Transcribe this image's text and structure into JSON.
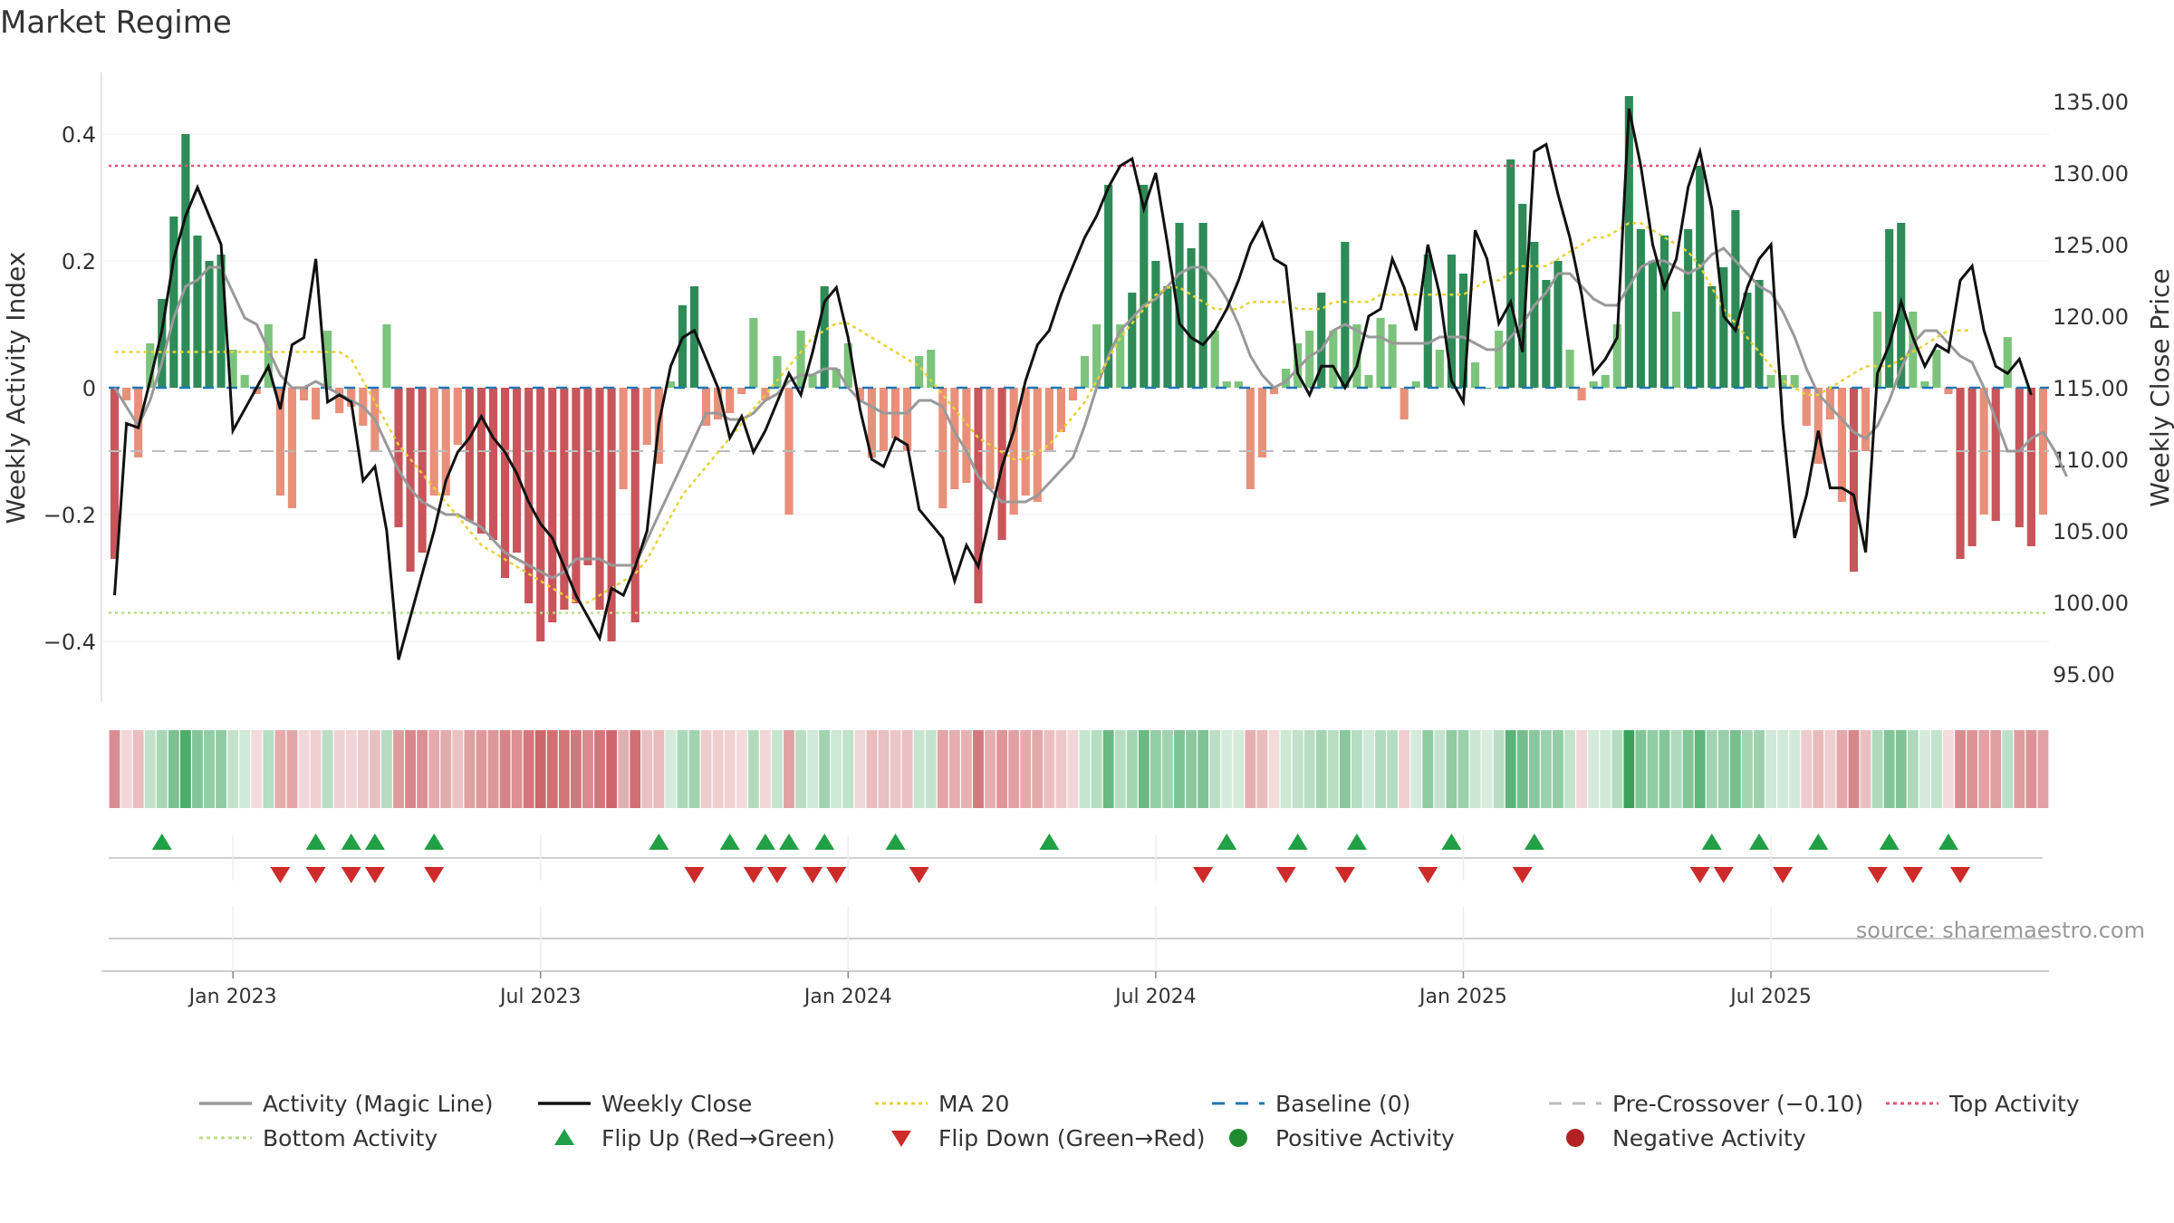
{
  "title": "Market Regime",
  "source": "source: sharemaestro.com",
  "colors": {
    "green_strong": "#2e8b57",
    "green_light": "#7cc47c",
    "red_strong": "#c8555a",
    "red_light": "#e9907a",
    "close": "#111111",
    "magic": "#999999",
    "ma20": "#e6d23a",
    "baseline": "#1f77b4",
    "pre": "#bbbbbb",
    "top": "#e0557a",
    "bottom": "#b9dd8a",
    "flip_up": "#22a046",
    "flip_down": "#cf2a2a",
    "pos_dot": "#1e8c2e",
    "neg_dot": "#b22222"
  },
  "chart_data": {
    "type": "bar",
    "x_ticks": [
      "Jan 2023",
      "Jul 2023",
      "Jan 2024",
      "Jul 2024",
      "Jan 2025",
      "Jul 2025"
    ],
    "y_left": {
      "label": "Weekly Activity Index",
      "ticks": [
        "−0.4",
        "−0.2",
        "0",
        "0.2",
        "0.4"
      ],
      "tick_values": [
        -0.4,
        -0.2,
        0,
        0.2,
        0.4
      ],
      "range": [
        -0.5,
        0.5
      ]
    },
    "y_right": {
      "label": "Weekly Close Price",
      "ticks": [
        "95.00",
        "100.00",
        "105.00",
        "110.00",
        "115.00",
        "120.00",
        "125.00",
        "130.00",
        "135.00"
      ],
      "tick_values": [
        95,
        100,
        105,
        110,
        115,
        120,
        125,
        130,
        135
      ],
      "range": [
        93,
        138
      ]
    },
    "thresholds": {
      "top": 0.35,
      "bottom": -0.355,
      "pre_crossover": -0.1,
      "baseline": 0
    },
    "activity": [
      -0.27,
      -0.02,
      -0.11,
      0.07,
      0.14,
      0.27,
      0.4,
      0.24,
      0.2,
      0.21,
      0.06,
      0.02,
      -0.01,
      0.1,
      -0.17,
      -0.19,
      -0.02,
      -0.05,
      0.09,
      -0.04,
      -0.03,
      -0.06,
      -0.1,
      0.1,
      -0.22,
      -0.29,
      -0.26,
      -0.17,
      -0.17,
      -0.09,
      -0.21,
      -0.23,
      -0.24,
      -0.3,
      -0.26,
      -0.34,
      -0.4,
      -0.37,
      -0.35,
      -0.34,
      -0.28,
      -0.35,
      -0.4,
      -0.16,
      -0.37,
      -0.09,
      -0.12,
      0.01,
      0.13,
      0.16,
      -0.06,
      -0.05,
      -0.04,
      -0.01,
      0.11,
      -0.02,
      0.05,
      -0.2,
      0.09,
      0.02,
      0.16,
      0.03,
      0.07,
      -0.02,
      -0.11,
      -0.1,
      -0.08,
      -0.1,
      0.05,
      0.06,
      -0.19,
      -0.16,
      -0.15,
      -0.34,
      -0.16,
      -0.24,
      -0.2,
      -0.17,
      -0.18,
      -0.1,
      -0.07,
      -0.02,
      0.05,
      0.1,
      0.32,
      0.1,
      0.15,
      0.32,
      0.2,
      0.16,
      0.26,
      0.22,
      0.26,
      0.09,
      0.01,
      0.01,
      -0.16,
      -0.11,
      -0.01,
      0.03,
      0.07,
      0.09,
      0.15,
      0.09,
      0.23,
      0.1,
      0.02,
      0.11,
      0.1,
      -0.05,
      0.01,
      0.21,
      0.06,
      0.21,
      0.18,
      0.04,
      0.0,
      0.09,
      0.36,
      0.29,
      0.23,
      0.17,
      0.2,
      0.06,
      -0.02,
      0.01,
      0.02,
      0.1,
      0.46,
      0.25,
      0.2,
      0.24,
      0.12,
      0.25,
      0.35,
      0.16,
      0.19,
      0.28,
      0.15,
      0.17,
      0.02,
      0.02,
      0.02,
      -0.06,
      -0.12,
      -0.05,
      -0.18,
      -0.29,
      -0.1,
      0.12,
      0.25,
      0.26,
      0.12,
      0.01,
      0.06,
      -0.01,
      -0.27,
      -0.25,
      -0.2,
      -0.21,
      0.08,
      -0.22,
      -0.25,
      -0.2
    ],
    "weekly_close": [
      100.5,
      112.5,
      112.2,
      115.5,
      119.0,
      124.0,
      127.0,
      129.0,
      127.0,
      125.0,
      112.0,
      113.5,
      115.0,
      116.5,
      113.5,
      118.0,
      118.5,
      124.0,
      114.0,
      114.5,
      114.0,
      108.5,
      109.5,
      105.0,
      96.0,
      99.0,
      102.0,
      105.0,
      108.5,
      110.5,
      111.5,
      113.0,
      111.5,
      110.5,
      109.0,
      107.0,
      105.5,
      104.5,
      102.5,
      100.5,
      99.0,
      97.5,
      101.0,
      100.5,
      102.5,
      105.0,
      112.5,
      116.5,
      118.5,
      119.0,
      117.0,
      115.0,
      111.5,
      113.0,
      110.5,
      112.0,
      114.0,
      116.0,
      114.5,
      117.5,
      121.0,
      122.0,
      118.5,
      113.5,
      110.0,
      109.5,
      111.5,
      111.0,
      106.5,
      105.5,
      104.5,
      101.5,
      104.0,
      102.5,
      106.0,
      109.5,
      112.0,
      115.5,
      118.0,
      119.0,
      121.5,
      123.5,
      125.5,
      127.0,
      129.0,
      130.5,
      131.0,
      127.5,
      130.0,
      125.0,
      119.5,
      118.5,
      118.0,
      119.0,
      120.5,
      122.5,
      125.0,
      126.5,
      124.0,
      123.5,
      116.0,
      114.5,
      116.5,
      116.5,
      115.0,
      116.5,
      120.0,
      120.5,
      124.0,
      122.0,
      119.0,
      125.0,
      121.5,
      115.5,
      114.0,
      126.0,
      124.0,
      119.5,
      121.0,
      117.5,
      131.5,
      132.0,
      128.5,
      125.5,
      121.5,
      116.0,
      117.0,
      118.5,
      134.5,
      130.5,
      125.0,
      122.0,
      124.0,
      129.0,
      131.5,
      127.5,
      120.0,
      119.0,
      122.0,
      124.0,
      125.0,
      112.5,
      104.5,
      107.5,
      112.0,
      108.0,
      108.0,
      107.5,
      103.5,
      116.0,
      118.0,
      121.0,
      118.5,
      116.5,
      118.0,
      117.5,
      122.5,
      123.5,
      119.0,
      116.5,
      116.0,
      117.0,
      114.5
    ],
    "magic_line": [
      0.0,
      -0.03,
      -0.06,
      -0.02,
      0.04,
      0.11,
      0.16,
      0.17,
      0.19,
      0.19,
      0.15,
      0.11,
      0.1,
      0.06,
      0.02,
      0.0,
      0.0,
      0.01,
      0.0,
      -0.01,
      -0.02,
      -0.03,
      -0.05,
      -0.09,
      -0.13,
      -0.16,
      -0.18,
      -0.19,
      -0.2,
      -0.2,
      -0.21,
      -0.22,
      -0.24,
      -0.26,
      -0.27,
      -0.28,
      -0.29,
      -0.3,
      -0.29,
      -0.27,
      -0.27,
      -0.27,
      -0.28,
      -0.28,
      -0.28,
      -0.24,
      -0.2,
      -0.16,
      -0.12,
      -0.08,
      -0.04,
      -0.04,
      -0.05,
      -0.05,
      -0.04,
      -0.02,
      -0.01,
      0.01,
      0.02,
      0.02,
      0.03,
      0.03,
      0.0,
      -0.02,
      -0.03,
      -0.04,
      -0.04,
      -0.04,
      -0.02,
      -0.02,
      -0.03,
      -0.07,
      -0.1,
      -0.14,
      -0.16,
      -0.18,
      -0.18,
      -0.18,
      -0.17,
      -0.15,
      -0.13,
      -0.11,
      -0.06,
      0.0,
      0.05,
      0.09,
      0.11,
      0.13,
      0.14,
      0.16,
      0.18,
      0.19,
      0.19,
      0.17,
      0.14,
      0.1,
      0.05,
      0.02,
      0.0,
      0.01,
      0.03,
      0.05,
      0.06,
      0.09,
      0.1,
      0.09,
      0.08,
      0.08,
      0.07,
      0.07,
      0.07,
      0.07,
      0.08,
      0.08,
      0.08,
      0.07,
      0.06,
      0.06,
      0.08,
      0.1,
      0.13,
      0.15,
      0.18,
      0.18,
      0.16,
      0.14,
      0.13,
      0.13,
      0.16,
      0.19,
      0.2,
      0.2,
      0.19,
      0.18,
      0.19,
      0.21,
      0.22,
      0.2,
      0.18,
      0.16,
      0.15,
      0.12,
      0.08,
      0.03,
      -0.01,
      -0.03,
      -0.05,
      -0.07,
      -0.08,
      -0.06,
      -0.02,
      0.03,
      0.07,
      0.09,
      0.09,
      0.07,
      0.05,
      0.04,
      0.0,
      -0.05,
      -0.1,
      -0.1,
      -0.08,
      -0.07,
      -0.1,
      -0.14
    ],
    "ma20": [
      117.5,
      117.5,
      117.5,
      117.5,
      117.5,
      117.5,
      117.5,
      117.5,
      117.5,
      117.5,
      117.5,
      117.5,
      117.5,
      117.5,
      117.5,
      117.5,
      117.5,
      117.5,
      117.5,
      117.5,
      117.0,
      115.5,
      114.0,
      112.5,
      111.0,
      110.0,
      109.0,
      108.0,
      107.0,
      106.0,
      105.0,
      104.0,
      103.5,
      103.0,
      102.5,
      102.0,
      101.5,
      101.0,
      100.5,
      100.0,
      100.0,
      100.5,
      101.0,
      101.5,
      102.0,
      103.0,
      104.5,
      106.0,
      107.5,
      108.5,
      109.5,
      110.5,
      111.5,
      112.5,
      113.5,
      114.5,
      115.5,
      116.5,
      117.5,
      118.5,
      119.0,
      119.5,
      119.5,
      119.0,
      118.5,
      118.0,
      117.5,
      117.0,
      116.5,
      115.5,
      114.5,
      113.5,
      112.5,
      111.5,
      111.0,
      110.5,
      110.0,
      110.0,
      110.5,
      111.0,
      112.0,
      113.0,
      114.0,
      115.5,
      117.0,
      118.5,
      119.5,
      120.5,
      121.5,
      122.0,
      122.0,
      121.5,
      121.0,
      120.5,
      120.5,
      120.5,
      121.0,
      121.0,
      121.0,
      121.0,
      120.5,
      120.5,
      120.5,
      121.0,
      121.0,
      121.0,
      121.0,
      121.5,
      121.5,
      121.5,
      121.5,
      121.5,
      121.5,
      121.5,
      121.5,
      122.0,
      122.5,
      122.5,
      123.0,
      123.5,
      123.5,
      123.5,
      124.0,
      124.5,
      125.0,
      125.5,
      125.5,
      126.0,
      126.5,
      126.5,
      126.0,
      125.5,
      125.0,
      124.5,
      123.5,
      122.0,
      120.5,
      119.5,
      118.5,
      117.5,
      116.5,
      115.5,
      115.0,
      114.5,
      114.5,
      115.0,
      115.5,
      116.0,
      116.5,
      116.5,
      116.5,
      117.0,
      117.5,
      118.0,
      118.5,
      119.0,
      119.0,
      119.0
    ],
    "flip_up_weeks": [
      4,
      17,
      20,
      22,
      27,
      46,
      52,
      55,
      57,
      60,
      66,
      79,
      94,
      100,
      105,
      113,
      120,
      135,
      139,
      144,
      150,
      155
    ],
    "flip_down_weeks": [
      14,
      17,
      20,
      22,
      27,
      49,
      54,
      56,
      59,
      61,
      68,
      92,
      99,
      104,
      111,
      119,
      134,
      136,
      141,
      149,
      152,
      156
    ]
  },
  "legend": [
    {
      "label": "Activity (Magic Line)",
      "kind": "line",
      "color": "#999999"
    },
    {
      "label": "Weekly Close",
      "kind": "line",
      "color": "#111111"
    },
    {
      "label": "MA 20",
      "kind": "dotted",
      "color": "#e6d23a"
    },
    {
      "label": "Baseline (0)",
      "kind": "dashed",
      "color": "#1f77b4"
    },
    {
      "label": "Pre-Crossover (−0.10)",
      "kind": "dashed",
      "color": "#bbbbbb"
    },
    {
      "label": "Top Activity",
      "kind": "dotted",
      "color": "#e0557a"
    },
    {
      "label": "Bottom Activity",
      "kind": "dotted",
      "color": "#b9dd8a"
    },
    {
      "label": "Flip Up (Red→Green)",
      "kind": "tri-up",
      "color": "#22a046"
    },
    {
      "label": "Flip Down (Green→Red)",
      "kind": "tri-down",
      "color": "#cf2a2a"
    },
    {
      "label": "Positive Activity",
      "kind": "dot",
      "color": "#1e8c2e"
    },
    {
      "label": "Negative Activity",
      "kind": "dot",
      "color": "#b22222"
    }
  ]
}
